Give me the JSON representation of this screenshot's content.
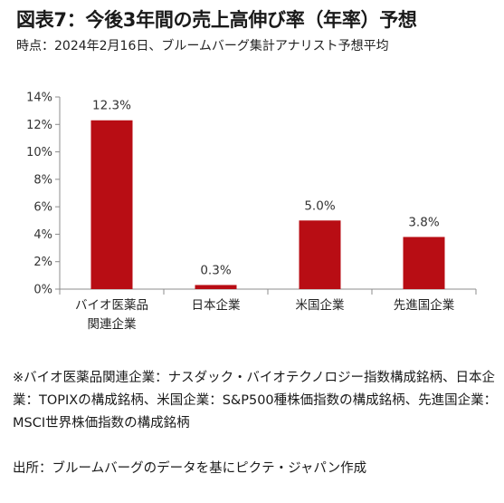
{
  "figure": {
    "title": "図表7：今後3年間の売上高伸び率（年率）予想",
    "subtitle": "時点：2024年2月16日、ブルームバーグ集計アナリスト予想平均"
  },
  "chart_data": {
    "type": "bar",
    "categories": [
      "バイオ医薬品\n関連企業",
      "日本企業",
      "米国企業",
      "先進国企業"
    ],
    "values": [
      12.3,
      0.3,
      5.0,
      3.8
    ],
    "value_labels": [
      "12.3%",
      "0.3%",
      "5.0%",
      "3.8%"
    ],
    "y_ticks": [
      "0%",
      "2%",
      "4%",
      "6%",
      "8%",
      "10%",
      "12%",
      "14%"
    ],
    "ylim": [
      0,
      14
    ],
    "color": "#b80d14",
    "grid": false,
    "legend": "none"
  },
  "notes": {
    "line1": "※バイオ医薬品関連企業：ナスダック・バイオテクノロジー指数構成銘柄、日本企業：TOPIXの構成銘柄、米国企業：S&P500種株価指数の構成銘柄、先進国企業：MSCI世界株価指数の構成銘柄",
    "line2": "出所：ブルームバーグのデータを基にピクテ・ジャパン作成"
  }
}
